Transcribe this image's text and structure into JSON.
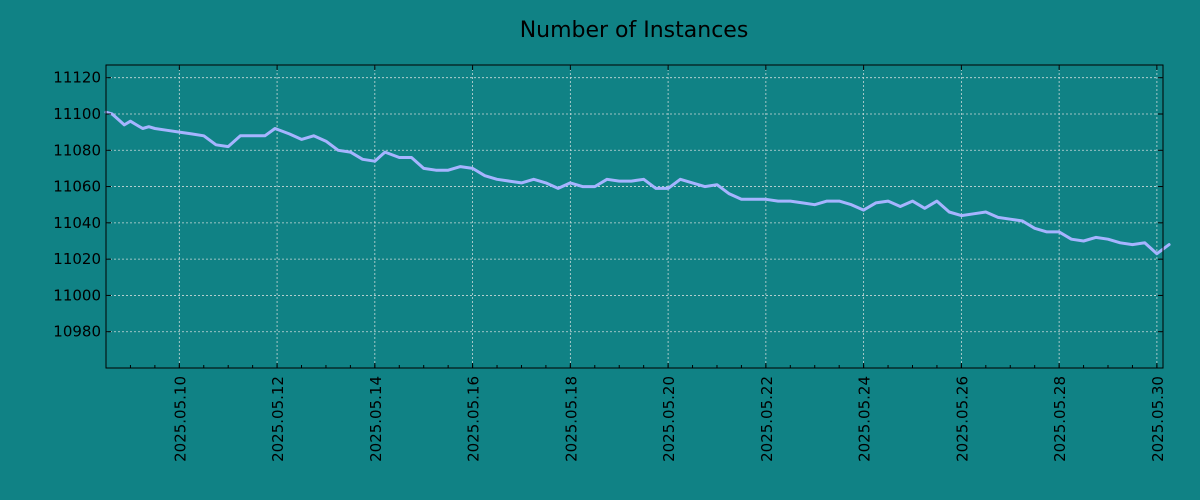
{
  "chart_data": {
    "type": "line",
    "title": "Number of Instances",
    "xlabel": "",
    "ylabel": "",
    "x_range": [
      "2025-05-08 12:00",
      "2025-05-30 03:00"
    ],
    "ylim": [
      10960,
      11127
    ],
    "y_ticks": [
      10980,
      11000,
      11020,
      11040,
      11060,
      11080,
      11100,
      11120
    ],
    "x_ticks": [
      "2025.05.10",
      "2025.05.12",
      "2025.05.14",
      "2025.05.16",
      "2025.05.18",
      "2025.05.20",
      "2025.05.22",
      "2025.05.24",
      "2025.05.26",
      "2025.05.28",
      "2025.05.30"
    ],
    "grid": true,
    "legend": "none",
    "series": [
      {
        "color": "#a6b4ff",
        "points": [
          [
            "2025-05-08 12:00",
            11101
          ],
          [
            "2025-05-08 15:00",
            11100
          ],
          [
            "2025-05-08 18:00",
            11097
          ],
          [
            "2025-05-08 21:00",
            11094
          ],
          [
            "2025-05-09 00:00",
            11096
          ],
          [
            "2025-05-09 03:00",
            11094
          ],
          [
            "2025-05-09 06:00",
            11092
          ],
          [
            "2025-05-09 09:00",
            11093
          ],
          [
            "2025-05-09 12:00",
            11092
          ],
          [
            "2025-05-09 18:00",
            11091
          ],
          [
            "2025-05-10 00:00",
            11090
          ],
          [
            "2025-05-10 06:00",
            11089
          ],
          [
            "2025-05-10 12:00",
            11088
          ],
          [
            "2025-05-10 18:00",
            11083
          ],
          [
            "2025-05-11 00:00",
            11082
          ],
          [
            "2025-05-11 06:00",
            11088
          ],
          [
            "2025-05-11 12:00",
            11088
          ],
          [
            "2025-05-11 18:00",
            11088
          ],
          [
            "2025-05-11 23:00",
            11092
          ],
          [
            "2025-05-12 06:00",
            11089
          ],
          [
            "2025-05-12 12:00",
            11086
          ],
          [
            "2025-05-12 18:00",
            11088
          ],
          [
            "2025-05-13 00:00",
            11085
          ],
          [
            "2025-05-13 06:00",
            11080
          ],
          [
            "2025-05-13 12:00",
            11079
          ],
          [
            "2025-05-13 18:00",
            11075
          ],
          [
            "2025-05-14 00:00",
            11074
          ],
          [
            "2025-05-14 05:00",
            11079
          ],
          [
            "2025-05-14 12:00",
            11076
          ],
          [
            "2025-05-14 18:00",
            11076
          ],
          [
            "2025-05-15 00:00",
            11070
          ],
          [
            "2025-05-15 06:00",
            11069
          ],
          [
            "2025-05-15 12:00",
            11069
          ],
          [
            "2025-05-15 18:00",
            11071
          ],
          [
            "2025-05-16 00:00",
            11070
          ],
          [
            "2025-05-16 06:00",
            11066
          ],
          [
            "2025-05-16 12:00",
            11064
          ],
          [
            "2025-05-16 18:00",
            11063
          ],
          [
            "2025-05-17 00:00",
            11062
          ],
          [
            "2025-05-17 06:00",
            11064
          ],
          [
            "2025-05-17 12:00",
            11062
          ],
          [
            "2025-05-17 18:00",
            11059
          ],
          [
            "2025-05-18 00:00",
            11062
          ],
          [
            "2025-05-18 06:00",
            11060
          ],
          [
            "2025-05-18 12:00",
            11060
          ],
          [
            "2025-05-18 18:00",
            11064
          ],
          [
            "2025-05-19 00:00",
            11063
          ],
          [
            "2025-05-19 06:00",
            11063
          ],
          [
            "2025-05-19 12:00",
            11064
          ],
          [
            "2025-05-19 18:00",
            11059
          ],
          [
            "2025-05-20 00:00",
            11059
          ],
          [
            "2025-05-20 06:00",
            11064
          ],
          [
            "2025-05-20 12:00",
            11062
          ],
          [
            "2025-05-20 18:00",
            11060
          ],
          [
            "2025-05-21 00:00",
            11061
          ],
          [
            "2025-05-21 06:00",
            11056
          ],
          [
            "2025-05-21 12:00",
            11053
          ],
          [
            "2025-05-21 18:00",
            11053
          ],
          [
            "2025-05-22 00:00",
            11053
          ],
          [
            "2025-05-22 06:00",
            11052
          ],
          [
            "2025-05-22 12:00",
            11052
          ],
          [
            "2025-05-22 18:00",
            11051
          ],
          [
            "2025-05-23 00:00",
            11050
          ],
          [
            "2025-05-23 06:00",
            11052
          ],
          [
            "2025-05-23 12:00",
            11052
          ],
          [
            "2025-05-23 18:00",
            11050
          ],
          [
            "2025-05-24 00:00",
            11047
          ],
          [
            "2025-05-24 06:00",
            11051
          ],
          [
            "2025-05-24 12:00",
            11052
          ],
          [
            "2025-05-24 18:00",
            11049
          ],
          [
            "2025-05-25 00:00",
            11052
          ],
          [
            "2025-05-25 06:00",
            11048
          ],
          [
            "2025-05-25 12:00",
            11052
          ],
          [
            "2025-05-25 18:00",
            11046
          ],
          [
            "2025-05-26 00:00",
            11044
          ],
          [
            "2025-05-26 06:00",
            11045
          ],
          [
            "2025-05-26 12:00",
            11046
          ],
          [
            "2025-05-26 18:00",
            11043
          ],
          [
            "2025-05-27 00:00",
            11042
          ],
          [
            "2025-05-27 06:00",
            11041
          ],
          [
            "2025-05-27 12:00",
            11037
          ],
          [
            "2025-05-27 18:00",
            11035
          ],
          [
            "2025-05-28 00:00",
            11035
          ],
          [
            "2025-05-28 06:00",
            11031
          ],
          [
            "2025-05-28 12:00",
            11030
          ],
          [
            "2025-05-28 18:00",
            11032
          ],
          [
            "2025-05-29 00:00",
            11031
          ],
          [
            "2025-05-29 06:00",
            11029
          ],
          [
            "2025-05-29 12:00",
            11028
          ],
          [
            "2025-05-29 18:00",
            11029
          ],
          [
            "2025-05-30 00:00",
            11023
          ],
          [
            "2025-05-30 06:00",
            11028
          ]
        ]
      }
    ]
  }
}
